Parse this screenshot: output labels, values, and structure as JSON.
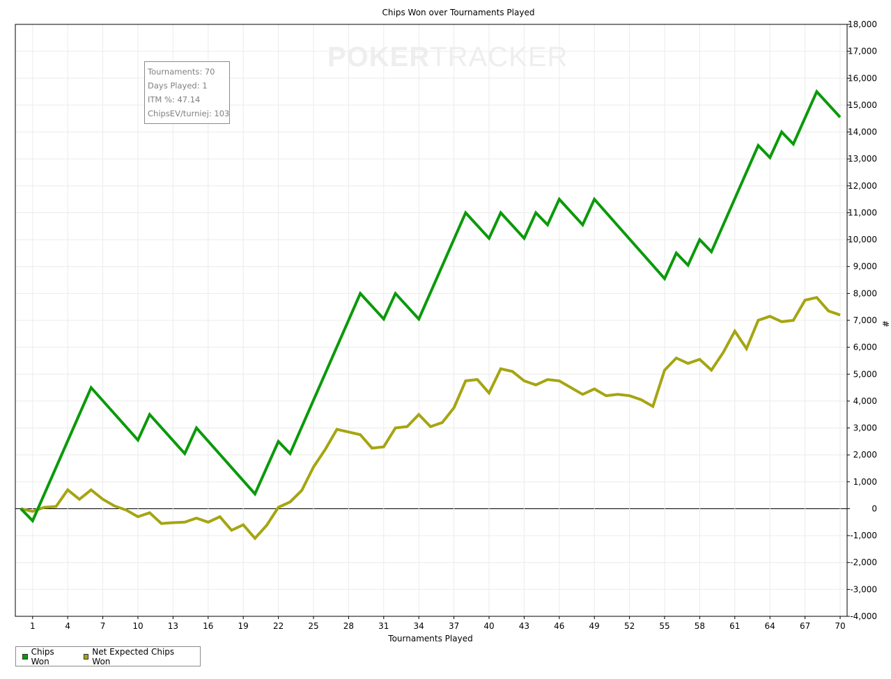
{
  "title": "Chips Won over Tournaments Played",
  "logo": {
    "part1": "POKER",
    "part2": "TRACKER"
  },
  "info_box": {
    "lines": [
      "Tournaments: 70",
      "Days Played: 1",
      "ITM %: 47.14",
      "ChipsEV/turniej: 103"
    ]
  },
  "legend": {
    "items": [
      {
        "label": "Chips Won",
        "color": "#0a9a0a"
      },
      {
        "label": "Net Expected Chips Won",
        "color": "#a5a512"
      }
    ]
  },
  "chart_data": {
    "type": "line",
    "title": "Chips Won over Tournaments Played",
    "xlabel": "Tournaments Played",
    "ylabel": "#",
    "xlim": [
      0,
      70
    ],
    "ylim": [
      -4000,
      18000
    ],
    "x_ticks": [
      1,
      4,
      7,
      10,
      13,
      16,
      19,
      22,
      25,
      28,
      31,
      34,
      37,
      40,
      43,
      46,
      49,
      52,
      55,
      58,
      61,
      64,
      67,
      70
    ],
    "y_ticks": [
      -4000,
      -3000,
      -2000,
      -1000,
      0,
      1000,
      2000,
      3000,
      4000,
      5000,
      6000,
      7000,
      8000,
      9000,
      10000,
      11000,
      12000,
      13000,
      14000,
      15000,
      16000,
      17000,
      18000
    ],
    "y_tick_labels": [
      "-4,000",
      "-3,000",
      "-2,000",
      "-1,000",
      "0",
      "1,000",
      "2,000",
      "3,000",
      "4,000",
      "5,000",
      "6,000",
      "7,000",
      "8,000",
      "9,000",
      "10,000",
      "11,000",
      "12,000",
      "13,000",
      "14,000",
      "15,000",
      "16,000",
      "17,000",
      "18,000"
    ],
    "grid": true,
    "legend_position": "bottom-left",
    "series": [
      {
        "name": "Chips Won",
        "color": "#0a9a0a",
        "x": [
          0,
          1,
          6,
          10,
          11,
          14,
          15,
          20,
          22,
          23,
          29,
          31,
          32,
          34,
          38,
          40,
          41,
          43,
          44,
          45,
          46,
          48,
          49,
          55,
          56,
          57,
          58,
          59,
          63,
          64,
          65,
          66,
          68,
          70
        ],
        "y": [
          0,
          -450,
          4500,
          2550,
          3500,
          2050,
          3000,
          550,
          2500,
          2050,
          8000,
          7050,
          8000,
          7050,
          11000,
          10050,
          11000,
          10050,
          11000,
          10550,
          11500,
          10550,
          11500,
          8550,
          9500,
          9050,
          10000,
          9550,
          13500,
          13050,
          14000,
          13550,
          15500,
          14550
        ]
      },
      {
        "name": "Net Expected Chips Won",
        "color": "#a5a512",
        "x": [
          0,
          1,
          2,
          3,
          4,
          5,
          6,
          7,
          8,
          9,
          10,
          11,
          12,
          13,
          14,
          15,
          16,
          17,
          18,
          19,
          20,
          21,
          22,
          23,
          24,
          25,
          26,
          27,
          28,
          29,
          30,
          31,
          32,
          33,
          34,
          35,
          36,
          37,
          38,
          39,
          40,
          41,
          42,
          43,
          44,
          45,
          46,
          47,
          48,
          49,
          50,
          51,
          52,
          53,
          54,
          55,
          56,
          57,
          58,
          59,
          60,
          61,
          62,
          63,
          64,
          65,
          66,
          67,
          68,
          69,
          70
        ],
        "y": [
          0,
          -100,
          50,
          80,
          700,
          350,
          700,
          350,
          100,
          -50,
          -300,
          -150,
          -550,
          -520,
          -500,
          -350,
          -500,
          -300,
          -800,
          -600,
          -1100,
          -620,
          50,
          250,
          680,
          1550,
          2200,
          2950,
          2850,
          2750,
          2250,
          2300,
          3000,
          3050,
          3500,
          3050,
          3200,
          3750,
          4750,
          4800,
          4300,
          5200,
          5100,
          4750,
          4600,
          4800,
          4750,
          4500,
          4250,
          4450,
          4200,
          4250,
          4200,
          4050,
          3800,
          5150,
          5600,
          5400,
          5550,
          5150,
          5800,
          6600,
          5950,
          7000,
          7150,
          6950,
          7000,
          7750,
          7850,
          7350,
          7200
        ]
      }
    ]
  }
}
